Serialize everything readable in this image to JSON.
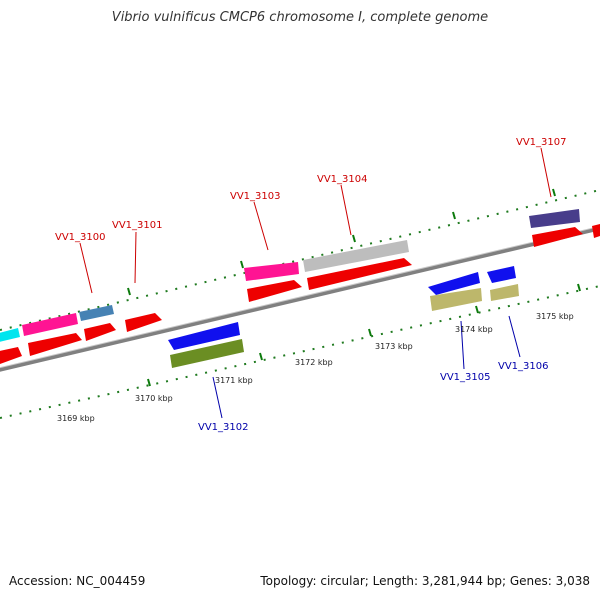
{
  "title": "Vibrio vulnificus CMCP6 chromosome I, complete genome",
  "footer": {
    "accession": "Accession: NC_004459",
    "summary": "Topology: circular; Length: 3,281,944 bp; Genes: 3,038"
  },
  "kbp_labels": [
    "3169 kbp",
    "3170 kbp",
    "3171 kbp",
    "3172 kbp",
    "3173 kbp",
    "3174 kbp",
    "3175 kbp"
  ],
  "gene_labels": {
    "top": [
      "VV1_3100",
      "VV1_3101",
      "VV1_3103",
      "VV1_3104",
      "VV1_3107"
    ],
    "bottom": [
      "VV1_3102",
      "VV1_3105",
      "VV1_3106"
    ]
  },
  "colors": {
    "backbone": "#808080",
    "top_label": "#cc0000",
    "bottom_label": "#0000aa",
    "cds": "#ee0000",
    "tick_green": "#008000"
  }
}
